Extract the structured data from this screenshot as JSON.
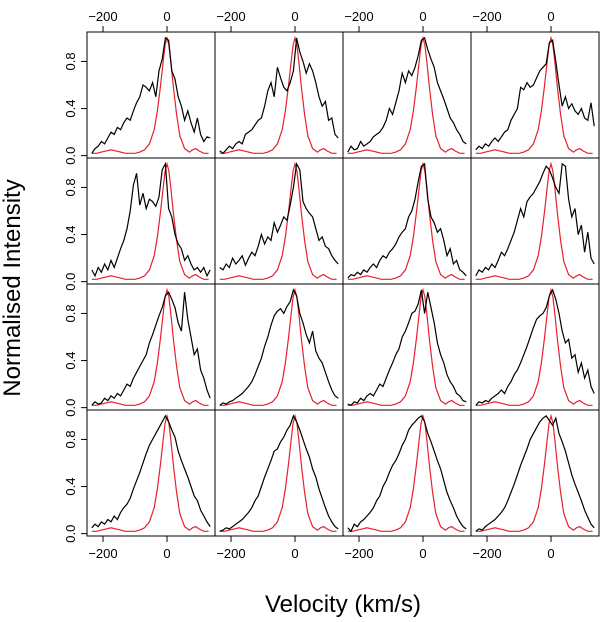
{
  "chart_data": {
    "type": "line",
    "layout": "4x4 grid of small multiples",
    "xlabel": "Velocity (km/s)",
    "ylabel": "Normalised Intensity",
    "xlim": [
      -250,
      150
    ],
    "ylim": [
      -0.02,
      1.05
    ],
    "x_ticks": [
      -200,
      0
    ],
    "x_tick_labels": [
      "−200",
      "0"
    ],
    "y_ticks": [
      0.0,
      0.4,
      0.8
    ],
    "y_tick_labels": [
      "0.0",
      "0.4",
      "0.8"
    ],
    "series_colors": {
      "observed": "#000000",
      "model": "#e8202a"
    },
    "model_profile": {
      "name": "model",
      "x": [
        -235,
        -220,
        -205,
        -190,
        -175,
        -160,
        -145,
        -130,
        -115,
        -100,
        -85,
        -70,
        -55,
        -40,
        -30,
        -20,
        -12,
        -6,
        0,
        6,
        12,
        20,
        30,
        40,
        55,
        70,
        80,
        90,
        100,
        115,
        130
      ],
      "values": [
        0.02,
        0.02,
        0.03,
        0.04,
        0.05,
        0.04,
        0.03,
        0.02,
        0.02,
        0.02,
        0.03,
        0.05,
        0.1,
        0.22,
        0.38,
        0.6,
        0.8,
        0.94,
        1.0,
        0.94,
        0.8,
        0.58,
        0.35,
        0.17,
        0.06,
        0.03,
        0.05,
        0.06,
        0.04,
        0.02,
        0.02
      ]
    },
    "observed_x": [
      -235,
      -225,
      -215,
      -205,
      -195,
      -185,
      -175,
      -165,
      -155,
      -145,
      -135,
      -125,
      -115,
      -105,
      -95,
      -85,
      -75,
      -65,
      -55,
      -45,
      -35,
      -25,
      -15,
      -5,
      5,
      15,
      25,
      35,
      45,
      55,
      65,
      75,
      85,
      95,
      105,
      115,
      125,
      135
    ],
    "panels": [
      {
        "name": "panel-r1c1",
        "observed": [
          0.02,
          0.06,
          0.08,
          0.12,
          0.1,
          0.15,
          0.2,
          0.18,
          0.24,
          0.22,
          0.28,
          0.32,
          0.3,
          0.38,
          0.45,
          0.5,
          0.6,
          0.58,
          0.55,
          0.62,
          0.5,
          0.72,
          0.82,
          1.0,
          0.98,
          0.72,
          0.65,
          0.5,
          0.42,
          0.3,
          0.38,
          0.28,
          0.2,
          0.32,
          0.18,
          0.12,
          0.16,
          0.15
        ]
      },
      {
        "name": "panel-r1c2",
        "observed": [
          0.04,
          0.02,
          0.05,
          0.08,
          0.06,
          0.1,
          0.12,
          0.1,
          0.18,
          0.2,
          0.22,
          0.26,
          0.3,
          0.32,
          0.42,
          0.55,
          0.62,
          0.5,
          0.75,
          0.66,
          0.58,
          0.55,
          0.62,
          0.72,
          1.0,
          0.88,
          0.8,
          0.7,
          0.78,
          0.72,
          0.62,
          0.5,
          0.42,
          0.46,
          0.3,
          0.32,
          0.18,
          0.15
        ]
      },
      {
        "name": "panel-r1c3",
        "observed": [
          0.03,
          0.08,
          0.05,
          0.06,
          0.12,
          0.08,
          0.1,
          0.12,
          0.16,
          0.18,
          0.2,
          0.24,
          0.3,
          0.4,
          0.35,
          0.45,
          0.55,
          0.7,
          0.62,
          0.72,
          0.68,
          0.75,
          0.85,
          0.98,
          1.0,
          0.9,
          0.82,
          0.75,
          0.62,
          0.55,
          0.48,
          0.4,
          0.32,
          0.28,
          0.22,
          0.18,
          0.12,
          0.1
        ]
      },
      {
        "name": "panel-r1c4",
        "observed": [
          0.05,
          0.08,
          0.06,
          0.1,
          0.08,
          0.12,
          0.15,
          0.12,
          0.16,
          0.2,
          0.22,
          0.3,
          0.35,
          0.4,
          0.58,
          0.56,
          0.62,
          0.58,
          0.6,
          0.66,
          0.72,
          0.75,
          0.78,
          0.96,
          0.98,
          0.8,
          0.6,
          0.42,
          0.5,
          0.4,
          0.44,
          0.38,
          0.35,
          0.4,
          0.32,
          0.3,
          0.45,
          0.25
        ]
      },
      {
        "name": "panel-r2c1",
        "observed": [
          0.1,
          0.05,
          0.12,
          0.08,
          0.15,
          0.1,
          0.18,
          0.12,
          0.2,
          0.28,
          0.35,
          0.45,
          0.6,
          0.82,
          0.92,
          0.65,
          0.75,
          0.62,
          0.7,
          0.68,
          0.64,
          0.72,
          0.95,
          1.0,
          0.62,
          0.55,
          0.4,
          0.32,
          0.28,
          0.18,
          0.22,
          0.15,
          0.1,
          0.12,
          0.08,
          0.12,
          0.05,
          0.1
        ]
      },
      {
        "name": "panel-r2c2",
        "observed": [
          0.12,
          0.1,
          0.15,
          0.12,
          0.2,
          0.15,
          0.18,
          0.22,
          0.14,
          0.2,
          0.25,
          0.22,
          0.3,
          0.4,
          0.32,
          0.38,
          0.35,
          0.5,
          0.42,
          0.48,
          0.55,
          0.52,
          0.65,
          0.8,
          1.0,
          0.95,
          0.68,
          0.62,
          0.58,
          0.55,
          0.45,
          0.35,
          0.38,
          0.3,
          0.28,
          0.22,
          0.18,
          0.15
        ]
      },
      {
        "name": "panel-r2c3",
        "observed": [
          0.03,
          0.06,
          0.05,
          0.08,
          0.06,
          0.1,
          0.08,
          0.12,
          0.15,
          0.12,
          0.18,
          0.22,
          0.2,
          0.25,
          0.28,
          0.32,
          0.38,
          0.42,
          0.45,
          0.55,
          0.6,
          0.7,
          0.85,
          0.98,
          1.0,
          0.7,
          0.55,
          0.5,
          0.42,
          0.45,
          0.35,
          0.22,
          0.28,
          0.15,
          0.18,
          0.1,
          0.08,
          0.05
        ]
      },
      {
        "name": "panel-r2c4",
        "observed": [
          0.05,
          0.1,
          0.08,
          0.12,
          0.1,
          0.15,
          0.12,
          0.18,
          0.25,
          0.22,
          0.28,
          0.35,
          0.42,
          0.52,
          0.62,
          0.55,
          0.68,
          0.72,
          0.75,
          0.8,
          0.85,
          0.92,
          0.98,
          0.95,
          0.88,
          0.8,
          0.75,
          1.0,
          0.98,
          0.7,
          0.55,
          0.62,
          0.4,
          0.48,
          0.25,
          0.42,
          0.2,
          0.15
        ]
      },
      {
        "name": "panel-r3c1",
        "observed": [
          0.02,
          0.05,
          0.03,
          0.04,
          0.08,
          0.06,
          0.1,
          0.08,
          0.12,
          0.1,
          0.15,
          0.2,
          0.18,
          0.25,
          0.3,
          0.35,
          0.4,
          0.45,
          0.55,
          0.62,
          0.7,
          0.78,
          0.85,
          0.95,
          0.98,
          0.92,
          0.85,
          0.72,
          0.65,
          0.98,
          0.75,
          0.6,
          0.45,
          0.5,
          0.32,
          0.25,
          0.15,
          0.08
        ]
      },
      {
        "name": "panel-r3c2",
        "observed": [
          0.02,
          0.04,
          0.03,
          0.05,
          0.06,
          0.08,
          0.1,
          0.12,
          0.15,
          0.18,
          0.22,
          0.28,
          0.35,
          0.42,
          0.52,
          0.6,
          0.7,
          0.78,
          0.82,
          0.84,
          0.8,
          0.86,
          0.9,
          1.0,
          0.95,
          0.8,
          0.72,
          0.62,
          0.55,
          0.65,
          0.48,
          0.42,
          0.38,
          0.3,
          0.22,
          0.15,
          0.1,
          0.08
        ]
      },
      {
        "name": "panel-r3c3",
        "observed": [
          0.03,
          0.02,
          0.05,
          0.04,
          0.08,
          0.06,
          0.1,
          0.12,
          0.1,
          0.15,
          0.2,
          0.18,
          0.25,
          0.32,
          0.38,
          0.45,
          0.5,
          0.6,
          0.65,
          0.72,
          0.8,
          0.82,
          0.88,
          1.0,
          0.8,
          0.98,
          0.85,
          0.72,
          0.55,
          0.45,
          0.38,
          0.28,
          0.22,
          0.18,
          0.12,
          0.1,
          0.06,
          0.05
        ]
      },
      {
        "name": "panel-r3c4",
        "observed": [
          0.02,
          0.05,
          0.04,
          0.06,
          0.05,
          0.08,
          0.1,
          0.12,
          0.15,
          0.12,
          0.18,
          0.22,
          0.28,
          0.32,
          0.38,
          0.45,
          0.52,
          0.6,
          0.68,
          0.75,
          0.78,
          0.8,
          0.85,
          0.95,
          1.0,
          0.92,
          0.8,
          0.65,
          0.55,
          0.58,
          0.42,
          0.45,
          0.3,
          0.38,
          0.25,
          0.32,
          0.18,
          0.12
        ]
      },
      {
        "name": "panel-r4c1",
        "observed": [
          0.05,
          0.08,
          0.06,
          0.1,
          0.08,
          0.12,
          0.1,
          0.15,
          0.12,
          0.18,
          0.22,
          0.25,
          0.3,
          0.38,
          0.45,
          0.52,
          0.6,
          0.68,
          0.75,
          0.8,
          0.85,
          0.9,
          0.95,
          1.0,
          0.95,
          0.88,
          0.82,
          0.7,
          0.62,
          0.55,
          0.48,
          0.4,
          0.32,
          0.28,
          0.2,
          0.15,
          0.1,
          0.06
        ]
      },
      {
        "name": "panel-r4c2",
        "observed": [
          0.02,
          0.03,
          0.05,
          0.04,
          0.06,
          0.08,
          0.1,
          0.12,
          0.15,
          0.18,
          0.22,
          0.28,
          0.32,
          0.4,
          0.48,
          0.55,
          0.62,
          0.7,
          0.72,
          0.78,
          0.82,
          0.88,
          0.92,
          1.0,
          0.95,
          0.88,
          0.8,
          0.72,
          0.65,
          0.55,
          0.48,
          0.38,
          0.3,
          0.22,
          0.15,
          0.1,
          0.06,
          0.04
        ]
      },
      {
        "name": "panel-r4c3",
        "observed": [
          0.05,
          0.02,
          0.08,
          0.06,
          0.1,
          0.12,
          0.15,
          0.18,
          0.22,
          0.28,
          0.32,
          0.4,
          0.45,
          0.52,
          0.58,
          0.62,
          0.68,
          0.75,
          0.8,
          0.88,
          0.92,
          0.95,
          0.98,
          1.0,
          0.95,
          0.85,
          0.78,
          0.7,
          0.62,
          0.55,
          0.45,
          0.35,
          0.28,
          0.22,
          0.15,
          0.1,
          0.06,
          0.04
        ]
      },
      {
        "name": "panel-r4c4",
        "observed": [
          0.02,
          0.04,
          0.03,
          0.06,
          0.08,
          0.1,
          0.12,
          0.15,
          0.18,
          0.22,
          0.28,
          0.35,
          0.42,
          0.5,
          0.58,
          0.65,
          0.72,
          0.8,
          0.85,
          0.9,
          0.95,
          0.98,
          1.0,
          0.96,
          0.92,
          0.98,
          0.85,
          0.78,
          0.7,
          0.6,
          0.5,
          0.42,
          0.35,
          0.28,
          0.2,
          0.14,
          0.08,
          0.05
        ]
      }
    ]
  }
}
